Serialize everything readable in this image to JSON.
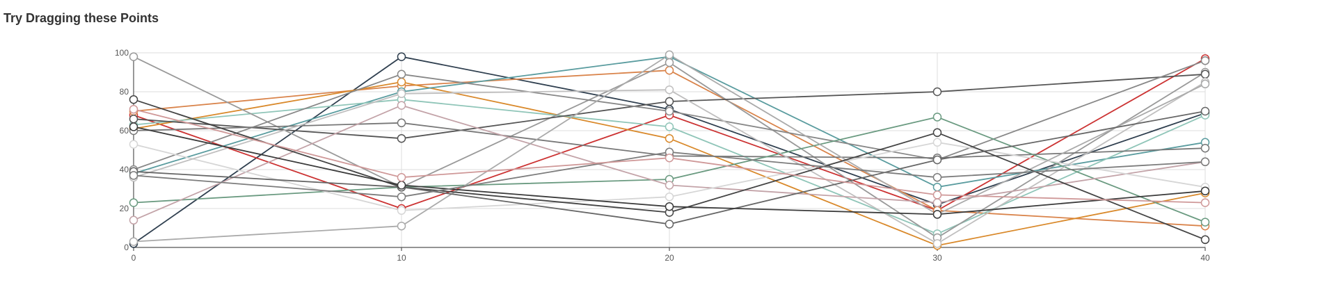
{
  "chart_data": {
    "type": "line",
    "title": "Try Dragging these Points",
    "xlabel": "",
    "ylabel": "",
    "x": [
      0,
      10,
      20,
      30,
      40
    ],
    "xlim": [
      0,
      40
    ],
    "ylim": [
      0,
      100
    ],
    "x_ticks": [
      "0",
      "10",
      "20",
      "30",
      "40"
    ],
    "y_ticks": [
      "0",
      "20",
      "40",
      "60",
      "80",
      "100"
    ],
    "grid": true,
    "legend": "none",
    "series": [
      {
        "color": "#2f3f4f",
        "values": [
          2,
          98,
          71,
          22,
          69
        ]
      },
      {
        "color": "#cc3333",
        "values": [
          68,
          20,
          68,
          19,
          97
        ]
      },
      {
        "color": "#d9834a",
        "values": [
          70,
          83,
          91,
          19,
          11
        ]
      },
      {
        "color": "#d9892b",
        "values": [
          61,
          85,
          56,
          1,
          28
        ]
      },
      {
        "color": "#5a9c9f",
        "values": [
          38,
          80,
          98,
          31,
          54
        ]
      },
      {
        "color": "#8fc5b8",
        "values": [
          63,
          76,
          62,
          7,
          68
        ]
      },
      {
        "color": "#999999",
        "values": [
          98,
          31,
          95,
          5,
          90
        ]
      },
      {
        "color": "#555555",
        "values": [
          66,
          56,
          75,
          80,
          89
        ]
      },
      {
        "color": "#888888",
        "values": [
          40,
          89,
          70,
          45,
          96
        ]
      },
      {
        "color": "#777777",
        "values": [
          60,
          64,
          47,
          46,
          51
        ]
      },
      {
        "color": "#6a9a80",
        "values": [
          23,
          31,
          35,
          67,
          13
        ]
      },
      {
        "color": "#c3a3a8",
        "values": [
          14,
          73,
          32,
          23,
          44
        ]
      },
      {
        "color": "#d6d6d6",
        "values": [
          53,
          19,
          26,
          54,
          31
        ]
      },
      {
        "color": "#c0bfbf",
        "values": [
          36,
          79,
          81,
          2,
          85
        ]
      },
      {
        "color": "#aaaaaa",
        "values": [
          3,
          11,
          99,
          17,
          84
        ]
      },
      {
        "color": "#444444",
        "values": [
          76,
          31,
          18,
          59,
          4
        ]
      },
      {
        "color": "#666666",
        "values": [
          39,
          31,
          12,
          45,
          70
        ]
      },
      {
        "color": "#3b3b3b",
        "values": [
          62,
          32,
          21,
          17,
          29
        ]
      },
      {
        "color": "#7c7c7c",
        "values": [
          37,
          26,
          49,
          36,
          44
        ]
      },
      {
        "color": "#cf9898",
        "values": [
          71,
          36,
          46,
          27,
          23
        ]
      }
    ]
  }
}
